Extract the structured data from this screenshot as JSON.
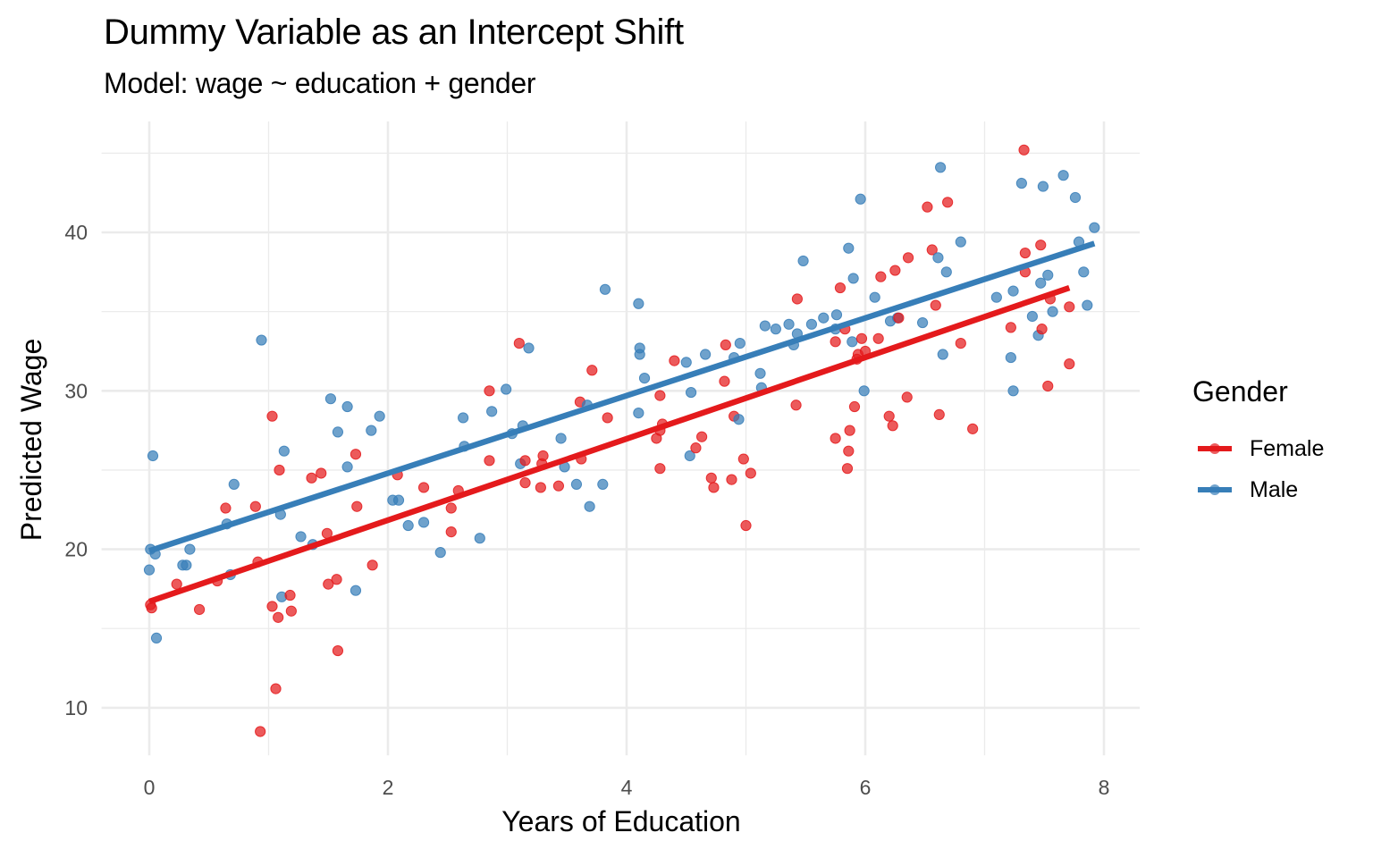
{
  "chart_data": {
    "type": "scatter",
    "title": "Dummy Variable as an Intercept Shift",
    "subtitle": "Model: wage ~ education + gender",
    "xlabel": "Years of Education",
    "ylabel": "Predicted Wage",
    "xlim": [
      -0.4,
      8.3
    ],
    "ylim": [
      7,
      47
    ],
    "x_ticks": [
      0,
      2,
      4,
      6,
      8
    ],
    "y_ticks": [
      10,
      20,
      30,
      40
    ],
    "grid": true,
    "legend": {
      "title": "Gender",
      "position": "right",
      "entries": [
        "Female",
        "Male"
      ]
    },
    "series": [
      {
        "name": "Female",
        "color": "#E41A1C",
        "fit_line": {
          "x": [
            0,
            7.71
          ],
          "y": [
            16.7,
            36.5
          ]
        },
        "points": [
          [
            0.01,
            16.5
          ],
          [
            0.02,
            16.3
          ],
          [
            0.23,
            17.8
          ],
          [
            0.42,
            16.2
          ],
          [
            0.57,
            18.0
          ],
          [
            0.64,
            22.6
          ],
          [
            0.89,
            22.7
          ],
          [
            0.91,
            19.2
          ],
          [
            0.93,
            8.5
          ],
          [
            1.03,
            28.4
          ],
          [
            1.03,
            16.4
          ],
          [
            1.06,
            11.2
          ],
          [
            1.08,
            15.7
          ],
          [
            1.09,
            25.0
          ],
          [
            1.18,
            17.1
          ],
          [
            1.19,
            16.1
          ],
          [
            1.36,
            24.5
          ],
          [
            1.44,
            24.8
          ],
          [
            1.49,
            21.0
          ],
          [
            1.5,
            17.8
          ],
          [
            1.57,
            18.1
          ],
          [
            1.58,
            13.6
          ],
          [
            1.73,
            26.0
          ],
          [
            1.74,
            22.7
          ],
          [
            1.87,
            19.0
          ],
          [
            2.08,
            24.7
          ],
          [
            2.3,
            23.9
          ],
          [
            2.53,
            21.1
          ],
          [
            2.53,
            22.6
          ],
          [
            2.59,
            23.7
          ],
          [
            2.85,
            25.6
          ],
          [
            2.85,
            30.0
          ],
          [
            3.1,
            33.0
          ],
          [
            3.15,
            25.6
          ],
          [
            3.15,
            24.2
          ],
          [
            3.28,
            23.9
          ],
          [
            3.3,
            25.9
          ],
          [
            3.29,
            25.4
          ],
          [
            3.43,
            24.0
          ],
          [
            3.61,
            29.3
          ],
          [
            3.62,
            25.7
          ],
          [
            3.71,
            31.3
          ],
          [
            3.84,
            28.3
          ],
          [
            4.25,
            27.0
          ],
          [
            4.28,
            27.5
          ],
          [
            4.28,
            29.7
          ],
          [
            4.28,
            25.1
          ],
          [
            4.3,
            27.9
          ],
          [
            4.4,
            31.9
          ],
          [
            4.58,
            26.4
          ],
          [
            4.63,
            27.1
          ],
          [
            4.71,
            24.5
          ],
          [
            4.73,
            23.9
          ],
          [
            4.82,
            30.6
          ],
          [
            4.83,
            32.9
          ],
          [
            4.88,
            24.4
          ],
          [
            4.9,
            28.4
          ],
          [
            4.98,
            25.7
          ],
          [
            5.0,
            21.5
          ],
          [
            5.04,
            24.8
          ],
          [
            5.42,
            29.1
          ],
          [
            5.43,
            35.8
          ],
          [
            5.75,
            33.1
          ],
          [
            5.75,
            27.0
          ],
          [
            5.79,
            36.5
          ],
          [
            5.85,
            25.1
          ],
          [
            5.86,
            26.2
          ],
          [
            5.87,
            27.5
          ],
          [
            5.83,
            33.9
          ],
          [
            5.91,
            29.0
          ],
          [
            5.94,
            32.3
          ],
          [
            5.93,
            32.0
          ],
          [
            5.97,
            33.3
          ],
          [
            6.0,
            32.5
          ],
          [
            6.11,
            33.3
          ],
          [
            6.13,
            37.2
          ],
          [
            6.2,
            28.4
          ],
          [
            6.23,
            27.8
          ],
          [
            6.25,
            37.6
          ],
          [
            6.28,
            34.6
          ],
          [
            6.35,
            29.6
          ],
          [
            6.36,
            38.4
          ],
          [
            6.52,
            41.6
          ],
          [
            6.56,
            38.9
          ],
          [
            6.59,
            35.4
          ],
          [
            6.62,
            28.5
          ],
          [
            6.69,
            41.9
          ],
          [
            6.8,
            33.0
          ],
          [
            6.9,
            27.6
          ],
          [
            7.22,
            34.0
          ],
          [
            7.33,
            45.2
          ],
          [
            7.34,
            38.7
          ],
          [
            7.34,
            37.5
          ],
          [
            7.47,
            39.2
          ],
          [
            7.48,
            33.9
          ],
          [
            7.53,
            30.3
          ],
          [
            7.55,
            35.8
          ],
          [
            7.71,
            31.7
          ],
          [
            7.71,
            35.3
          ]
        ]
      },
      {
        "name": "Male",
        "color": "#377EB8",
        "fit_line": {
          "x": [
            0,
            7.92
          ],
          "y": [
            19.9,
            39.3
          ]
        },
        "points": [
          [
            0.0,
            18.7
          ],
          [
            0.01,
            20.0
          ],
          [
            0.03,
            25.9
          ],
          [
            0.05,
            19.7
          ],
          [
            0.06,
            14.4
          ],
          [
            0.28,
            19.0
          ],
          [
            0.31,
            19.0
          ],
          [
            0.34,
            20.0
          ],
          [
            0.65,
            21.6
          ],
          [
            0.68,
            18.4
          ],
          [
            0.71,
            24.1
          ],
          [
            0.94,
            33.2
          ],
          [
            1.1,
            22.2
          ],
          [
            1.11,
            17.0
          ],
          [
            1.13,
            26.2
          ],
          [
            1.27,
            20.8
          ],
          [
            1.37,
            20.3
          ],
          [
            1.52,
            29.5
          ],
          [
            1.58,
            27.4
          ],
          [
            1.66,
            25.2
          ],
          [
            1.66,
            29.0
          ],
          [
            1.73,
            17.4
          ],
          [
            1.86,
            27.5
          ],
          [
            1.93,
            28.4
          ],
          [
            2.04,
            23.1
          ],
          [
            2.09,
            23.1
          ],
          [
            2.17,
            21.5
          ],
          [
            2.3,
            21.7
          ],
          [
            2.44,
            19.8
          ],
          [
            2.63,
            28.3
          ],
          [
            2.64,
            26.5
          ],
          [
            2.77,
            20.7
          ],
          [
            2.87,
            28.7
          ],
          [
            2.99,
            30.1
          ],
          [
            3.04,
            27.3
          ],
          [
            3.11,
            25.4
          ],
          [
            3.13,
            27.8
          ],
          [
            3.18,
            32.7
          ],
          [
            3.45,
            27.0
          ],
          [
            3.48,
            25.2
          ],
          [
            3.58,
            24.1
          ],
          [
            3.67,
            29.1
          ],
          [
            3.69,
            22.7
          ],
          [
            3.8,
            24.1
          ],
          [
            3.82,
            36.4
          ],
          [
            4.1,
            35.5
          ],
          [
            4.11,
            32.3
          ],
          [
            4.11,
            32.7
          ],
          [
            4.1,
            28.6
          ],
          [
            4.15,
            30.8
          ],
          [
            4.5,
            31.8
          ],
          [
            4.53,
            25.9
          ],
          [
            4.54,
            29.9
          ],
          [
            4.66,
            32.3
          ],
          [
            4.9,
            32.1
          ],
          [
            4.94,
            28.2
          ],
          [
            4.95,
            33.0
          ],
          [
            5.12,
            31.1
          ],
          [
            5.13,
            30.2
          ],
          [
            5.16,
            34.1
          ],
          [
            5.25,
            33.9
          ],
          [
            5.36,
            34.2
          ],
          [
            5.4,
            32.9
          ],
          [
            5.43,
            33.6
          ],
          [
            5.48,
            38.2
          ],
          [
            5.55,
            34.2
          ],
          [
            5.65,
            34.6
          ],
          [
            5.76,
            34.8
          ],
          [
            5.75,
            33.9
          ],
          [
            5.86,
            39.0
          ],
          [
            5.9,
            37.1
          ],
          [
            5.89,
            33.1
          ],
          [
            5.96,
            42.1
          ],
          [
            5.99,
            30.0
          ],
          [
            6.08,
            35.9
          ],
          [
            6.21,
            34.4
          ],
          [
            6.27,
            34.6
          ],
          [
            6.48,
            34.3
          ],
          [
            6.61,
            38.4
          ],
          [
            6.63,
            44.1
          ],
          [
            6.65,
            32.3
          ],
          [
            6.68,
            37.5
          ],
          [
            6.8,
            39.4
          ],
          [
            7.1,
            35.9
          ],
          [
            7.22,
            32.1
          ],
          [
            7.24,
            30.0
          ],
          [
            7.24,
            36.3
          ],
          [
            7.31,
            43.1
          ],
          [
            7.4,
            34.7
          ],
          [
            7.45,
            33.5
          ],
          [
            7.47,
            36.8
          ],
          [
            7.49,
            42.9
          ],
          [
            7.53,
            37.3
          ],
          [
            7.57,
            35.0
          ],
          [
            7.66,
            43.6
          ],
          [
            7.76,
            42.2
          ],
          [
            7.79,
            39.4
          ],
          [
            7.83,
            37.5
          ],
          [
            7.86,
            35.4
          ],
          [
            7.92,
            40.3
          ]
        ]
      }
    ]
  }
}
